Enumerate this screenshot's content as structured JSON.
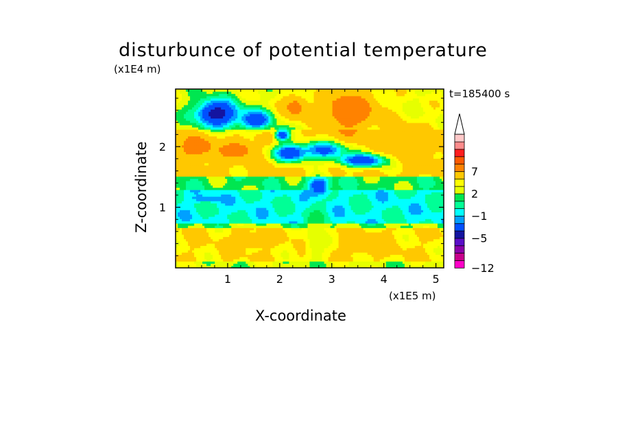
{
  "chart_data": {
    "type": "heatmap",
    "title": "disturbunce of potential temperature",
    "xlabel": "X-coordinate",
    "ylabel": "Z-coordinate",
    "x_unit": "(x1E5 m)",
    "y_unit": "(x1E4 m)",
    "annotation": "t=185400 s",
    "xlim": [
      0,
      5.15
    ],
    "ylim": [
      0,
      2.95
    ],
    "x_ticks": [
      1,
      2,
      3,
      4,
      5
    ],
    "x_tick_labels": [
      "1",
      "2",
      "3",
      "4",
      "5"
    ],
    "y_ticks": [
      1,
      2
    ],
    "y_tick_labels": [
      "1",
      "2"
    ],
    "colorbar": {
      "levels": [
        -12,
        -10,
        -8,
        -7,
        -5,
        -3,
        -2,
        -1,
        0,
        1,
        2,
        3,
        5,
        7,
        8,
        9,
        10
      ],
      "tick_labels": [
        "7",
        "2",
        "−1",
        "−5",
        "−12"
      ],
      "colors": [
        "#ff00c8",
        "#c8008c",
        "#8c00aa",
        "#5a0fc8",
        "#1414a0",
        "#0050ff",
        "#00a0ff",
        "#00ffff",
        "#00ff96",
        "#00e650",
        "#e6ff00",
        "#ffff00",
        "#ffc800",
        "#ff8200",
        "#ff5a00",
        "#ff1e1e",
        "#ff8c8c",
        "#ffc8c8"
      ],
      "extend_max": true
    },
    "bands": [
      {
        "z_from": 0.0,
        "z_to": 0.1,
        "value": 1.5
      },
      {
        "z_from": 0.1,
        "z_to": 0.65,
        "value": 3.0
      },
      {
        "z_from": 0.65,
        "z_to": 0.75,
        "value": 1.0
      },
      {
        "z_from": 0.75,
        "z_to": 1.3,
        "value": -1.2
      },
      {
        "z_from": 1.3,
        "z_to": 1.5,
        "value": 0.5
      },
      {
        "z_from": 1.5,
        "z_to": 2.3,
        "value": 3.5
      },
      {
        "z_from": 2.3,
        "z_to": 2.95,
        "value": 2.0
      }
    ],
    "features": [
      {
        "x": 0.8,
        "z": 2.55,
        "value": -6,
        "rx": 0.45,
        "rz": 0.25
      },
      {
        "x": 1.55,
        "z": 2.45,
        "value": -5,
        "rx": 0.3,
        "rz": 0.15
      },
      {
        "x": 2.05,
        "z": 2.2,
        "value": -5,
        "rx": 0.15,
        "rz": 0.1
      },
      {
        "x": 2.2,
        "z": 1.9,
        "value": -5,
        "rx": 0.35,
        "rz": 0.15
      },
      {
        "x": 2.85,
        "z": 1.95,
        "value": -4,
        "rx": 0.45,
        "rz": 0.15
      },
      {
        "x": 3.6,
        "z": 1.78,
        "value": -5,
        "rx": 0.5,
        "rz": 0.12
      },
      {
        "x": 3.35,
        "z": 2.6,
        "value": 7,
        "rx": 0.55,
        "rz": 0.35
      },
      {
        "x": 2.3,
        "z": 2.65,
        "value": 6,
        "rx": 0.25,
        "rz": 0.2
      },
      {
        "x": 0.4,
        "z": 2.0,
        "value": 6,
        "rx": 0.4,
        "rz": 0.2
      },
      {
        "x": 1.2,
        "z": 1.95,
        "value": 6,
        "rx": 0.3,
        "rz": 0.15
      },
      {
        "x": 4.5,
        "z": 2.1,
        "value": 5,
        "rx": 0.5,
        "rz": 0.3
      },
      {
        "x": 2.75,
        "z": 1.35,
        "value": -5,
        "rx": 0.2,
        "rz": 0.15
      },
      {
        "x": 0.6,
        "z": 1.15,
        "value": -3,
        "rx": 0.3,
        "rz": 0.05
      },
      {
        "x": 3.7,
        "z": 0.4,
        "value": 5,
        "rx": 0.4,
        "rz": 0.15
      },
      {
        "x": 1.4,
        "z": 0.45,
        "value": 5,
        "rx": 0.3,
        "rz": 0.1
      },
      {
        "x": 2.7,
        "z": 0.5,
        "value": 1,
        "rx": 0.2,
        "rz": 0.5
      }
    ]
  }
}
